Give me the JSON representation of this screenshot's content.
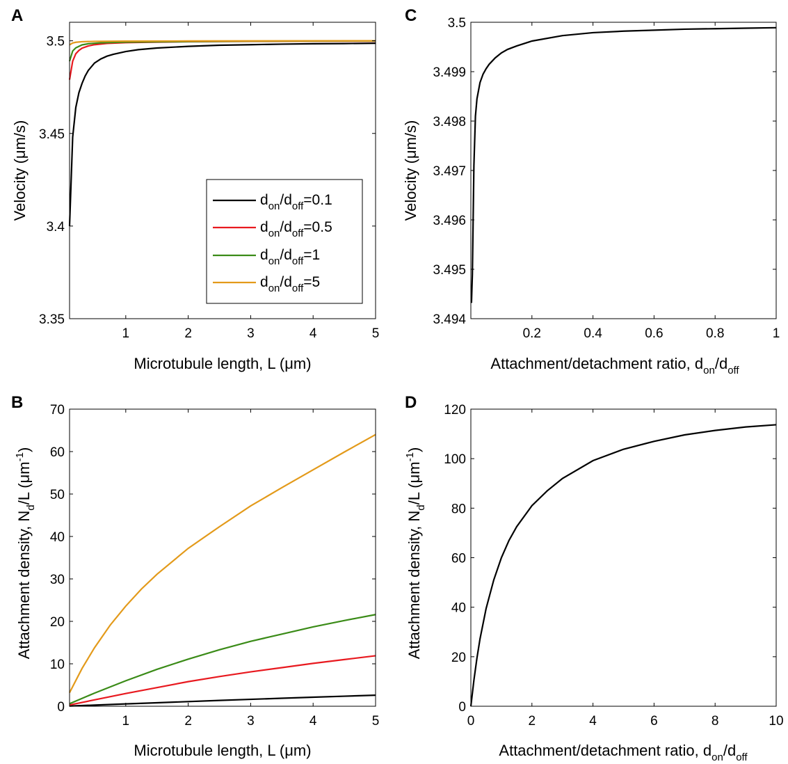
{
  "chart_data": [
    {
      "panel": "A",
      "type": "line",
      "xlabel": "Microtubule length, L (μm)",
      "ylabel": "Velocity (μm/s)",
      "xlim": [
        0.1,
        5
      ],
      "ylim": [
        3.35,
        3.51
      ],
      "xticks": [
        1,
        2,
        3,
        4,
        5
      ],
      "yticks": [
        3.35,
        3.4,
        3.45,
        3.5
      ],
      "xtick_labels": [
        "1",
        "2",
        "3",
        "4",
        "5"
      ],
      "ytick_labels": [
        "3.35",
        "3.4",
        "3.45",
        "3.5"
      ],
      "grid": false,
      "legend": "bottom-right",
      "series": [
        {
          "name": "d_on/d_off=0.1",
          "legend": {
            "a": "d",
            "b": "on",
            "c": "/d",
            "d": "off",
            "e": "=0.1"
          },
          "color": "#000000",
          "x": [
            0.1,
            0.15,
            0.2,
            0.25,
            0.3,
            0.35,
            0.4,
            0.5,
            0.6,
            0.7,
            0.8,
            1.0,
            1.2,
            1.5,
            2.0,
            2.5,
            3.0,
            3.5,
            4.0,
            4.5,
            5.0
          ],
          "y": [
            3.4,
            3.448,
            3.464,
            3.472,
            3.477,
            3.481,
            3.484,
            3.488,
            3.4902,
            3.4917,
            3.4927,
            3.4942,
            3.4952,
            3.4961,
            3.497,
            3.4976,
            3.4979,
            3.4982,
            3.4984,
            3.4985,
            3.4987
          ]
        },
        {
          "name": "d_on/d_off=0.5",
          "legend": {
            "a": "d",
            "b": "on",
            "c": "/d",
            "d": "off",
            "e": "=0.5"
          },
          "color": "#e8191f",
          "x": [
            0.1,
            0.15,
            0.2,
            0.25,
            0.3,
            0.4,
            0.5,
            0.7,
            1.0,
            1.5,
            2.0,
            3.0,
            4.0,
            5.0
          ],
          "y": [
            3.479,
            3.489,
            3.493,
            3.4948,
            3.496,
            3.4972,
            3.4979,
            3.4986,
            3.499,
            3.4993,
            3.4995,
            3.4997,
            3.4998,
            3.4998
          ]
        },
        {
          "name": "d_on/d_off=1",
          "legend": {
            "a": "d",
            "b": "on",
            "c": "/d",
            "d": "off",
            "e": "=1"
          },
          "color": "#3a8b17",
          "x": [
            0.1,
            0.15,
            0.2,
            0.3,
            0.4,
            0.6,
            1.0,
            2.0,
            3.0,
            5.0
          ],
          "y": [
            3.489,
            3.4945,
            3.4962,
            3.4978,
            3.4984,
            3.4989,
            3.4993,
            3.4996,
            3.4998,
            3.4999
          ]
        },
        {
          "name": "d_on/d_off=5",
          "legend": {
            "a": "d",
            "b": "on",
            "c": "/d",
            "d": "off",
            "e": "=5"
          },
          "color": "#e39a1a",
          "x": [
            0.1,
            0.15,
            0.2,
            0.3,
            0.5,
            1.0,
            2.0,
            5.0
          ],
          "y": [
            3.4978,
            3.4988,
            3.4992,
            3.4995,
            3.4997,
            3.4998,
            3.4999,
            3.5
          ]
        }
      ]
    },
    {
      "panel": "B",
      "type": "line",
      "xlabel": "Microtubule length, L (μm)",
      "ylabel": "Attachment density, N_d/L (μm^-1)",
      "xlim": [
        0.1,
        5
      ],
      "ylim": [
        0,
        70
      ],
      "xticks": [
        1,
        2,
        3,
        4,
        5
      ],
      "yticks": [
        0,
        10,
        20,
        30,
        40,
        50,
        60,
        70
      ],
      "xtick_labels": [
        "1",
        "2",
        "3",
        "4",
        "5"
      ],
      "ytick_labels": [
        "0",
        "10",
        "20",
        "30",
        "40",
        "50",
        "60",
        "70"
      ],
      "grid": false,
      "series": [
        {
          "name": "d_on/d_off=0.1",
          "color": "#000000",
          "x": [
            0.1,
            0.5,
            1.0,
            1.5,
            2.0,
            2.5,
            3.0,
            3.5,
            4.0,
            4.5,
            5.0
          ],
          "y": [
            0.05,
            0.27,
            0.55,
            0.82,
            1.1,
            1.37,
            1.63,
            1.88,
            2.13,
            2.37,
            2.6
          ]
        },
        {
          "name": "d_on/d_off=0.5",
          "color": "#e8191f",
          "x": [
            0.1,
            0.5,
            1.0,
            1.5,
            2.0,
            2.5,
            3.0,
            3.5,
            4.0,
            4.5,
            5.0
          ],
          "y": [
            0.3,
            1.5,
            3.0,
            4.4,
            5.8,
            7.0,
            8.1,
            9.1,
            10.1,
            11.0,
            11.9
          ]
        },
        {
          "name": "d_on/d_off=1",
          "color": "#3a8b17",
          "x": [
            0.1,
            0.5,
            1.0,
            1.5,
            2.0,
            2.5,
            3.0,
            3.5,
            4.0,
            4.5,
            5.0
          ],
          "y": [
            0.6,
            3.1,
            6.0,
            8.7,
            11.1,
            13.3,
            15.3,
            17.0,
            18.7,
            20.2,
            21.6
          ]
        },
        {
          "name": "d_on/d_off=5",
          "color": "#e39a1a",
          "x": [
            0.1,
            0.3,
            0.5,
            0.75,
            1.0,
            1.25,
            1.5,
            2.0,
            2.5,
            3.0,
            3.5,
            4.0,
            4.5,
            5.0
          ],
          "y": [
            3.2,
            8.9,
            13.8,
            19.1,
            23.6,
            27.6,
            31.1,
            37.2,
            42.3,
            47.2,
            51.5,
            55.7,
            59.9,
            64.0
          ]
        }
      ]
    },
    {
      "panel": "C",
      "type": "line",
      "xlabel": {
        "a": "Attachment/detachment ratio, d",
        "b": "on",
        "c": "/d",
        "d": "off"
      },
      "ylabel": "Velocity (μm/s)",
      "xlim": [
        0,
        1
      ],
      "ylim": [
        3.494,
        3.5
      ],
      "xticks": [
        0.2,
        0.4,
        0.6,
        0.8,
        1
      ],
      "yticks": [
        3.494,
        3.495,
        3.496,
        3.497,
        3.498,
        3.499,
        3.5
      ],
      "xtick_labels": [
        "0.2",
        "0.4",
        "0.6",
        "0.8",
        "1"
      ],
      "ytick_labels": [
        "3.494",
        "3.495",
        "3.496",
        "3.497",
        "3.498",
        "3.499",
        "3.5"
      ],
      "grid": false,
      "series": [
        {
          "color": "#000000",
          "x": [
            0.002,
            0.005,
            0.01,
            0.015,
            0.02,
            0.03,
            0.04,
            0.05,
            0.06,
            0.08,
            0.1,
            0.12,
            0.15,
            0.2,
            0.3,
            0.4,
            0.5,
            0.6,
            0.7,
            0.8,
            0.9,
            1.0
          ],
          "y": [
            3.49432,
            3.4949,
            3.4971,
            3.4981,
            3.49845,
            3.49878,
            3.49895,
            3.49906,
            3.49915,
            3.49928,
            3.49938,
            3.49945,
            3.49952,
            3.49962,
            3.49973,
            3.49979,
            3.49982,
            3.49984,
            3.49986,
            3.49987,
            3.49988,
            3.49989
          ]
        }
      ]
    },
    {
      "panel": "D",
      "type": "line",
      "xlabel": {
        "a": "Attachment/detachment ratio, d",
        "b": "on",
        "c": "/d",
        "d": "off"
      },
      "ylabel": "Attachment density, N_d/L (μm^-1)",
      "xlim": [
        0,
        10
      ],
      "ylim": [
        0,
        120
      ],
      "xticks": [
        0,
        2,
        4,
        6,
        8,
        10
      ],
      "yticks": [
        0,
        20,
        40,
        60,
        80,
        100,
        120
      ],
      "xtick_labels": [
        "0",
        "2",
        "4",
        "6",
        "8",
        "10"
      ],
      "ytick_labels": [
        "0",
        "20",
        "40",
        "60",
        "80",
        "100",
        "120"
      ],
      "grid": false,
      "series": [
        {
          "color": "#000000",
          "x": [
            0,
            0.1,
            0.2,
            0.3,
            0.5,
            0.75,
            1.0,
            1.25,
            1.5,
            2.0,
            2.5,
            3.0,
            4.0,
            5.0,
            6.0,
            7.0,
            8.0,
            9.0,
            10.0
          ],
          "y": [
            0,
            10.5,
            19.5,
            27.2,
            39.5,
            51.0,
            60.0,
            67.0,
            72.5,
            81.0,
            87.0,
            92.0,
            99.2,
            103.8,
            107.0,
            109.6,
            111.4,
            112.8,
            113.7
          ]
        }
      ]
    }
  ]
}
